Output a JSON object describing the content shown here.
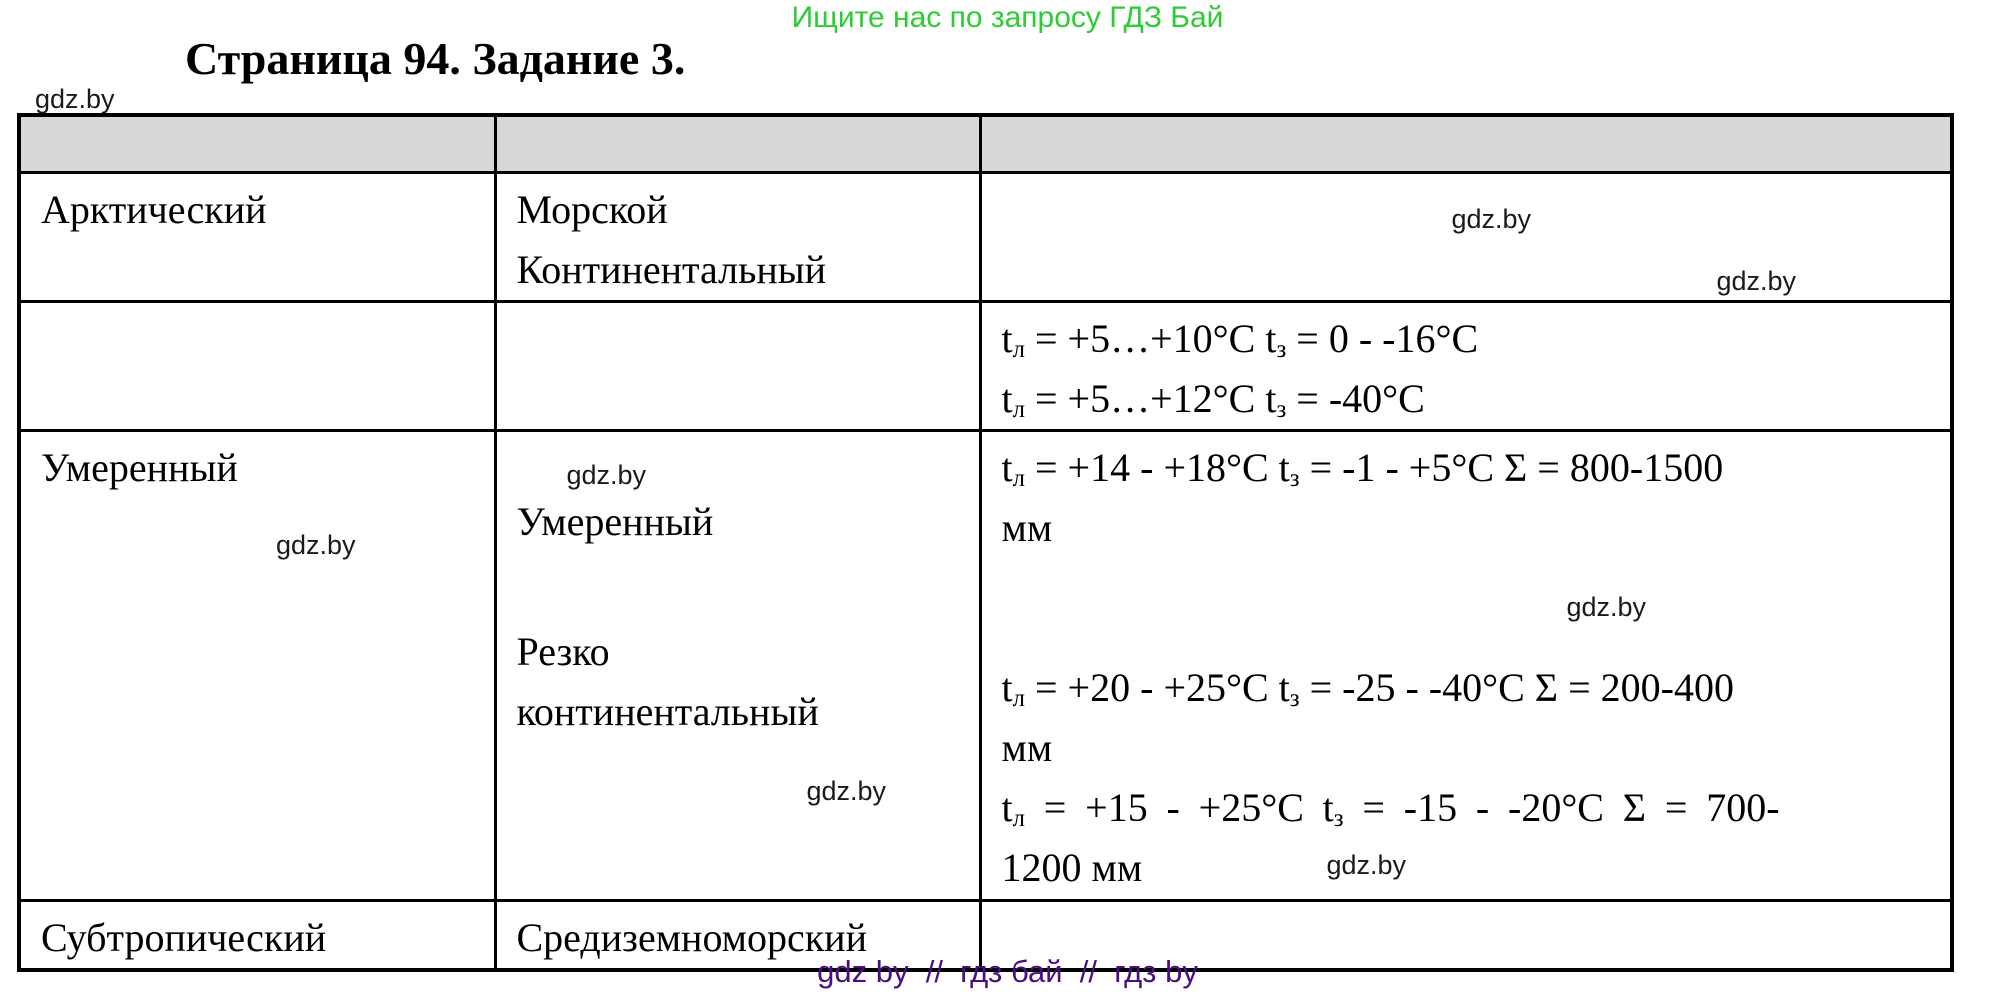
{
  "page": {
    "promo_banner": "Ищите нас по запросу ГДЗ Бай",
    "title": "Страница 94. Задание 3.",
    "watermark": "gdz.by",
    "footer": "gdz by  //  гдз бай  //  гдз by",
    "colors": {
      "banner_green": "#2fcb35",
      "footer_purple": "#4a0d82",
      "header_gray": "#d7d7d7",
      "border_black": "#000000"
    }
  },
  "table": {
    "header": [
      "",
      "",
      ""
    ],
    "row_arctic": {
      "zone": "Арктический",
      "type_line1": "Морской",
      "type_line2": "Континентальный"
    },
    "row_arctic_temps": {
      "line1": "t{л} = +5…+10°C t{з} = 0 - -16°C",
      "line2": "t{л} = +5…+12°C t{з} = -40°C"
    },
    "row_temperate": {
      "zone": "Умеренный",
      "type1": "Умеренный",
      "type2_line1": "Резко",
      "type2_line2": "континентальный",
      "char1_line1": "t{л} = +14 - +18°C t{з} = -1 - +5°C Σ = 800-1500",
      "char1_line2": "мм",
      "char2_line1": "t{л} = +20 - +25°C t{з} = -25 - -40°C Σ = 200-400",
      "char2_line2": "мм",
      "char3_line1": "t{л} = +15 - +25°C t{з} = -15 - -20°C Σ = 700-",
      "char3_line2": "1200 мм"
    },
    "row_subtropical": {
      "zone": "Субтропический",
      "type": "Средиземноморский"
    }
  }
}
